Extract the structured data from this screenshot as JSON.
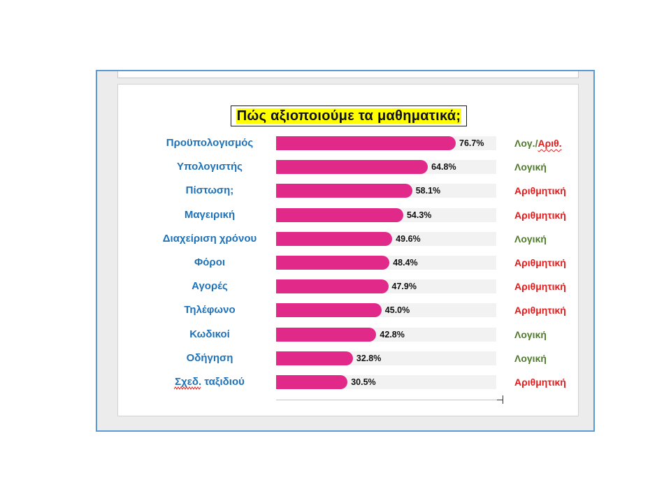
{
  "chart_data": {
    "type": "bar",
    "orientation": "horizontal",
    "title": "Πώς αξιοποιούμε τα μαθηματικά;",
    "categories": [
      "Προϋπολογισμός",
      "Υπολογιστής",
      "Πίστωση;",
      "Μαγειρική",
      "Διαχείριση χρόνου",
      "Φόροι",
      "Αγορές",
      "Τηλέφωνο",
      "Κωδικοί",
      "Οδήγηση",
      "Σχεδ. ταξιδιού"
    ],
    "values": [
      76.7,
      64.8,
      58.1,
      54.3,
      49.6,
      48.4,
      47.9,
      45.0,
      42.8,
      32.8,
      30.5
    ],
    "value_labels": [
      "76.7%",
      "64.8%",
      "58.1%",
      "54.3%",
      "49.6%",
      "48.4%",
      "47.9%",
      "45.0%",
      "42.8%",
      "32.8%",
      "30.5%"
    ],
    "annotations": [
      [
        {
          "text": "Λογ./",
          "color": "#4f7c2c"
        },
        {
          "text": "Αριθ.",
          "color": "#e31b1b"
        }
      ],
      [
        {
          "text": "Λογική",
          "color": "#4f7c2c"
        }
      ],
      [
        {
          "text": "Αριθμητική",
          "color": "#e31b1b"
        }
      ],
      [
        {
          "text": "Αριθμητική",
          "color": "#e31b1b"
        }
      ],
      [
        {
          "text": "Λογική",
          "color": "#4f7c2c"
        }
      ],
      [
        {
          "text": "Αριθμητική",
          "color": "#e31b1b"
        }
      ],
      [
        {
          "text": "Αριθμητική",
          "color": "#e31b1b"
        }
      ],
      [
        {
          "text": "Αριθμητική",
          "color": "#e31b1b"
        }
      ],
      [
        {
          "text": "Λογική",
          "color": "#4f7c2c"
        }
      ],
      [
        {
          "text": "Λογική",
          "color": "#4f7c2c"
        }
      ],
      [
        {
          "text": "Αριθμητική",
          "color": "#e31b1b"
        }
      ]
    ],
    "xlim": [
      0,
      94
    ],
    "grid": false,
    "legend": "none",
    "colors": {
      "bar": "#e1298a",
      "track": "#f2f2f2",
      "category_text": "#1f72b8",
      "title_highlight": "#ffff00"
    }
  }
}
